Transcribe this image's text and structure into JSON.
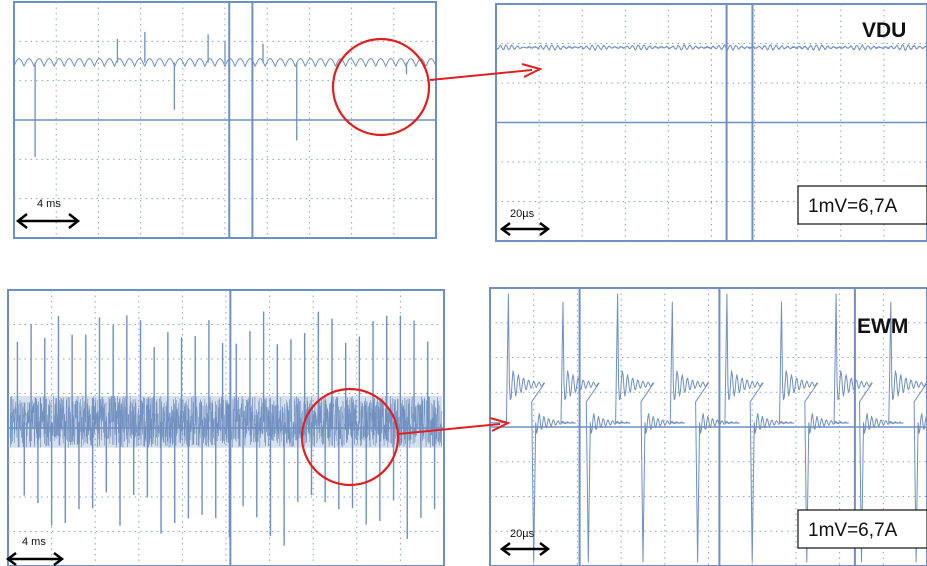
{
  "colors": {
    "trace": "#6f8fbf",
    "grid": "#8aa4cc",
    "frame": "#6e8fc4",
    "annotation": "#e02020",
    "scale_arrow": "#000000"
  },
  "icons": {
    "time_scale": "double-headed-arrow",
    "highlight": "circle",
    "zoom_link": "arrow"
  },
  "chart_data": [
    {
      "type": "line",
      "panel": "top-left",
      "time_scale_label": "4 ms",
      "grid": true,
      "divisions": {
        "x": 10,
        "y": 6
      },
      "trace": {
        "baseline_div": 3.5,
        "ripple_amplitude_div": 0.1,
        "ripple_cycles": 42,
        "spikes": [
          {
            "x_div": 0.5,
            "height_div": -4.0
          },
          {
            "x_div": 2.45,
            "height_div": 1.0
          },
          {
            "x_div": 3.1,
            "height_div": 1.3
          },
          {
            "x_div": 3.8,
            "height_div": -2.0
          },
          {
            "x_div": 4.6,
            "height_div": 1.2
          },
          {
            "x_div": 5.0,
            "height_div": 0.9
          },
          {
            "x_div": 5.9,
            "height_div": 0.8
          },
          {
            "x_div": 6.7,
            "height_div": -3.3
          },
          {
            "x_div": 9.3,
            "height_div": -0.5
          }
        ]
      },
      "cursors_div": [
        5.1,
        5.65
      ]
    },
    {
      "type": "line",
      "panel": "top-right",
      "channel_label": "VDU",
      "time_scale_label": "20µs",
      "scale_label": "1mV=6,7A",
      "grid": true,
      "divisions": {
        "x": 10,
        "y": 6
      },
      "trace": {
        "baseline_div": 1.1,
        "ripple_amplitude_div": 0.06,
        "ripple_cycles": 75
      },
      "cursors_div": [
        5.35,
        5.95
      ]
    },
    {
      "type": "line",
      "panel": "bottom-left",
      "time_scale_label": "4 ms",
      "grid": true,
      "divisions": {
        "x": 10,
        "y": 8
      },
      "trace": {
        "baseline_div": 3.9,
        "band_halfwidth_div": 0.75,
        "pulse_count": 62,
        "pulse_up_div": 3.2,
        "pulse_down_div": 3.6
      },
      "cursors_div": [
        5.1
      ]
    },
    {
      "type": "line",
      "panel": "bottom-right",
      "channel_label": "EWM",
      "time_scale_label": "20µs",
      "scale_label": "1mV=6,7A",
      "grid": true,
      "divisions": {
        "x": 10,
        "y": 8
      },
      "trace": {
        "baseline_div": 3.8,
        "pulses_per_screen": 8,
        "pulse_up_div": 3.4,
        "pulse_down_div": 3.8,
        "ring_amplitude_div": 0.35
      },
      "cursors_div": [
        2.05,
        5.25,
        8.35
      ]
    }
  ]
}
